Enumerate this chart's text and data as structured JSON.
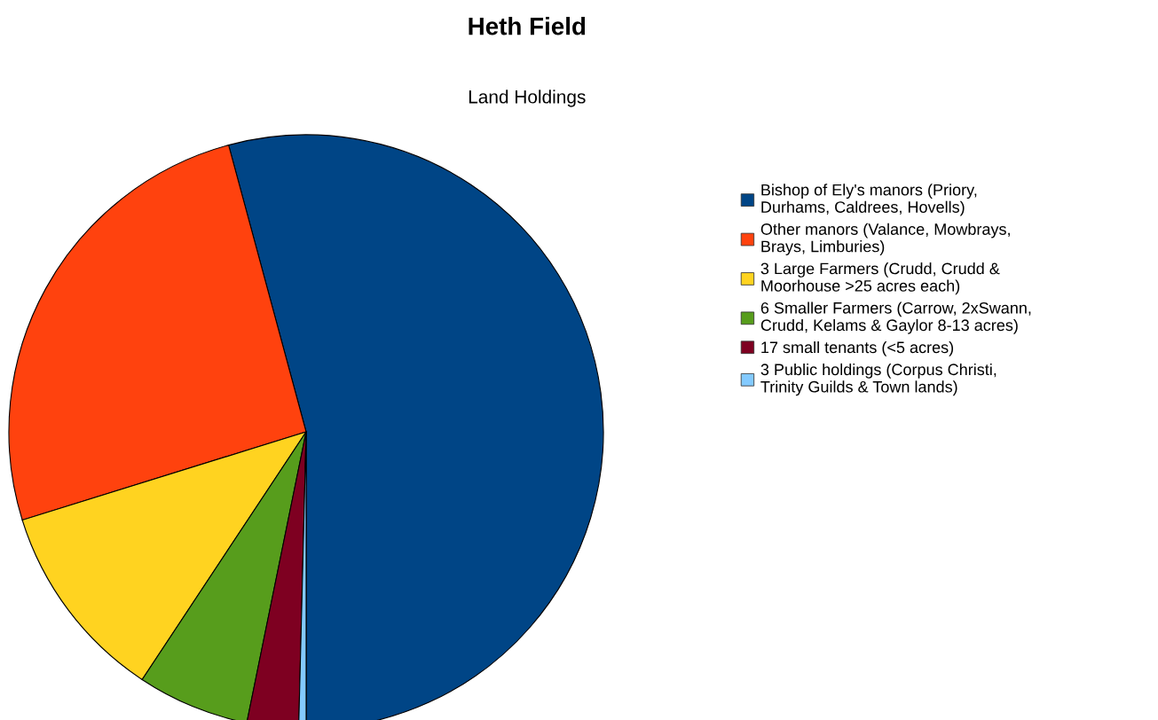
{
  "chart_data": {
    "type": "pie",
    "title": "Heth Field",
    "subtitle": "Land Holdings",
    "categories": [
      "Bishop of Ely's manors (Priory,\nDurhams, Caldrees, Hovells)",
      "Other manors (Valance, Mowbrays,\nBrays, Limburies)",
      "3 Large Farmers (Crudd, Crudd &\nMoorhouse >25 acres each)",
      "6 Smaller Farmers (Carrow, 2xSwann,\nCrudd, Kelams & Gaylor 8-13 acres)",
      "17 small tenants (<5 acres)",
      "3 Public holdings (Corpus Christi,\nTrinity Guilds & Town lands)"
    ],
    "values": [
      54.2,
      25.6,
      10.9,
      6.1,
      2.8,
      0.4
    ],
    "colors": [
      "#004586",
      "#ff420e",
      "#ffd320",
      "#579d1c",
      "#7e0021",
      "#83caff"
    ],
    "legend": "right"
  }
}
